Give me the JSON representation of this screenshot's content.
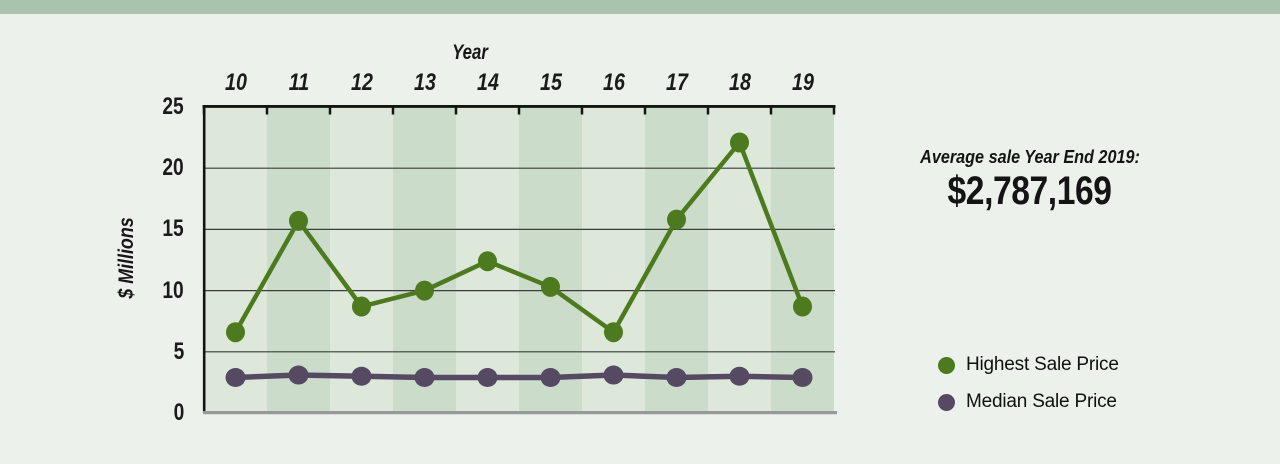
{
  "colors": {
    "background": "#edf1ec",
    "top_bar": "#a9c3ac",
    "axis": "#141414",
    "grid": "#3d3d3d",
    "baseline": "#97999b"
  },
  "chart_data": {
    "type": "line",
    "title": "Year",
    "ylabel": "$ Millions",
    "categories": [
      "10",
      "11",
      "12",
      "13",
      "14",
      "15",
      "16",
      "17",
      "18",
      "19"
    ],
    "series": [
      {
        "name": "Highest Sale Price",
        "color": "#4d7a1f",
        "values": [
          6.6,
          15.7,
          8.7,
          10.0,
          12.4,
          10.3,
          6.6,
          15.8,
          22.1,
          8.7
        ]
      },
      {
        "name": "Median Sale Price",
        "color": "#564a63",
        "values": [
          2.9,
          3.1,
          3.0,
          2.9,
          2.9,
          2.9,
          3.1,
          2.9,
          3.0,
          2.9
        ]
      }
    ],
    "ylim": [
      0,
      25
    ],
    "yticks": [
      0,
      5,
      10,
      15,
      20,
      25
    ],
    "band_colors": [
      "#dde8db",
      "#ccdcca"
    ],
    "grid": true,
    "legend_position": "right"
  },
  "annotation": {
    "label": "Average sale Year End 2019:",
    "value": "$2,787,169"
  }
}
